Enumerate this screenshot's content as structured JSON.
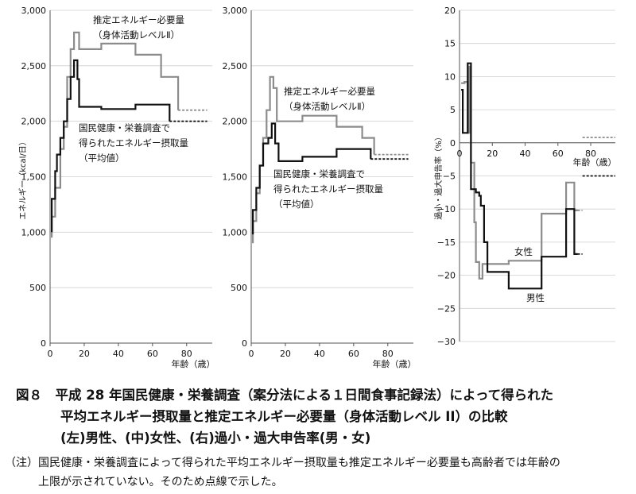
{
  "chart_data": [
    {
      "type": "line",
      "panel": "left",
      "ylim": [
        0,
        3000
      ],
      "yticks": [
        0,
        500,
        1000,
        1500,
        2000,
        2500,
        3000
      ],
      "ytick_labels": [
        "0",
        "500",
        "1,000",
        "1,500",
        "2,000",
        "2,500",
        "3,000"
      ],
      "xlim": [
        0,
        95
      ],
      "xticks": [
        0,
        20,
        40,
        60,
        80
      ],
      "xtick_labels": [
        "0",
        "20",
        "40",
        "60",
        "80"
      ],
      "ylabel": "エネルギー（kcal/日）",
      "xlabel": "年齢（歳）",
      "series": [
        {
          "name": "推定エネルギー必要量（身体活動レベルⅡ）",
          "color": "#8c8c8c",
          "points": [
            [
              1,
              950
            ],
            [
              1,
              1140
            ],
            [
              3,
              1140
            ],
            [
              3,
              1400
            ],
            [
              6,
              1400
            ],
            [
              6,
              1750
            ],
            [
              8,
              1750
            ],
            [
              8,
              1950
            ],
            [
              10,
              1950
            ],
            [
              10,
              2400
            ],
            [
              12,
              2400
            ],
            [
              12,
              2650
            ],
            [
              14,
              2650
            ],
            [
              14,
              2800
            ],
            [
              17,
              2800
            ],
            [
              17,
              2650
            ],
            [
              30,
              2650
            ],
            [
              30,
              2700
            ],
            [
              50,
              2700
            ],
            [
              50,
              2600
            ],
            [
              65,
              2600
            ],
            [
              65,
              2400
            ],
            [
              75,
              2400
            ],
            [
              75,
              2100
            ]
          ],
          "extension": [
            [
              75,
              2100
            ],
            [
              92,
              2100
            ]
          ]
        },
        {
          "name": "国民健康・栄養調査で得られたエネルギー摂取量（平均値）",
          "color": "#111111",
          "points": [
            [
              1,
              1000
            ],
            [
              1,
              1300
            ],
            [
              3,
              1300
            ],
            [
              3,
              1550
            ],
            [
              4,
              1550
            ],
            [
              4,
              1700
            ],
            [
              6,
              1700
            ],
            [
              6,
              1850
            ],
            [
              8,
              1850
            ],
            [
              8,
              2000
            ],
            [
              10,
              2000
            ],
            [
              10,
              2200
            ],
            [
              12,
              2200
            ],
            [
              12,
              2400
            ],
            [
              14,
              2400
            ],
            [
              14,
              2550
            ],
            [
              16,
              2550
            ],
            [
              16,
              2380
            ],
            [
              17,
              2380
            ],
            [
              17,
              2130
            ],
            [
              30,
              2130
            ],
            [
              30,
              2110
            ],
            [
              50,
              2110
            ],
            [
              50,
              2150
            ],
            [
              70,
              2150
            ],
            [
              70,
              2000
            ]
          ],
          "extension": [
            [
              70,
              2000
            ],
            [
              92,
              2000
            ]
          ]
        }
      ],
      "annotations": [
        {
          "text": "推定エネルギー必要量"
        },
        {
          "text": "（身体活動レベルⅡ）"
        },
        {
          "text": "国民健康・栄養調査で"
        },
        {
          "text": "得られたエネルギー摂取量"
        },
        {
          "text": "（平均値）"
        }
      ]
    },
    {
      "type": "line",
      "panel": "middle",
      "ylim": [
        0,
        3000
      ],
      "yticks": [
        0,
        500,
        1000,
        1500,
        2000,
        2500,
        3000
      ],
      "ytick_labels": [
        "0",
        "500",
        "1,000",
        "1,500",
        "2,000",
        "2,500",
        "3,000"
      ],
      "xlim": [
        0,
        95
      ],
      "xticks": [
        0,
        20,
        40,
        60,
        80
      ],
      "xtick_labels": [
        "0",
        "20",
        "40",
        "60",
        "80"
      ],
      "xlabel": "年齢（歳）",
      "series": [
        {
          "name": "推定エネルギー必要量（身体活動レベルⅡ）",
          "color": "#8c8c8c",
          "points": [
            [
              1,
              900
            ],
            [
              1,
              1100
            ],
            [
              3,
              1100
            ],
            [
              3,
              1350
            ],
            [
              5,
              1350
            ],
            [
              5,
              1600
            ],
            [
              7,
              1600
            ],
            [
              7,
              1850
            ],
            [
              9,
              1850
            ],
            [
              9,
              2100
            ],
            [
              11,
              2100
            ],
            [
              11,
              2400
            ],
            [
              13,
              2400
            ],
            [
              13,
              2300
            ],
            [
              15,
              2300
            ],
            [
              15,
              2000
            ],
            [
              30,
              2000
            ],
            [
              30,
              2050
            ],
            [
              50,
              2050
            ],
            [
              50,
              1950
            ],
            [
              65,
              1950
            ],
            [
              65,
              1850
            ],
            [
              72,
              1850
            ],
            [
              72,
              1700
            ]
          ],
          "extension": [
            [
              72,
              1700
            ],
            [
              92,
              1700
            ]
          ]
        },
        {
          "name": "国民健康・栄養調査で得られたエネルギー摂取量（平均値）",
          "color": "#111111",
          "points": [
            [
              1,
              980
            ],
            [
              1,
              1200
            ],
            [
              3,
              1200
            ],
            [
              3,
              1400
            ],
            [
              5,
              1400
            ],
            [
              5,
              1600
            ],
            [
              7,
              1600
            ],
            [
              7,
              1800
            ],
            [
              10,
              1800
            ],
            [
              10,
              1850
            ],
            [
              12,
              1850
            ],
            [
              12,
              1980
            ],
            [
              14,
              1980
            ],
            [
              14,
              1800
            ],
            [
              16,
              1800
            ],
            [
              16,
              1640
            ],
            [
              30,
              1640
            ],
            [
              30,
              1680
            ],
            [
              50,
              1680
            ],
            [
              50,
              1750
            ],
            [
              70,
              1750
            ],
            [
              70,
              1660
            ]
          ],
          "extension": [
            [
              70,
              1660
            ],
            [
              92,
              1660
            ]
          ]
        }
      ],
      "annotations": [
        {
          "text": "推定エネルギー必要量"
        },
        {
          "text": "（身体活動レベルⅡ）"
        },
        {
          "text": "国民健康・栄養調査で"
        },
        {
          "text": "得られたエネルギー摂取量"
        },
        {
          "text": "（平均値）"
        }
      ]
    },
    {
      "type": "line",
      "panel": "right",
      "ylim": [
        -30,
        20
      ],
      "yticks": [
        -30,
        -25,
        -20,
        -15,
        -10,
        -5,
        0,
        5,
        10,
        15,
        20
      ],
      "ytick_labels": [
        "−30",
        "−25",
        "−20",
        "−15",
        "−10",
        "−5",
        "0",
        "5",
        "10",
        "15",
        "20"
      ],
      "xlim": [
        0,
        95
      ],
      "xticks": [
        0,
        20,
        40,
        60,
        80
      ],
      "xtick_labels": [
        "0",
        "20",
        "40",
        "60",
        "80"
      ],
      "ylabel": "過小・過大申告率（%）",
      "xlabel": "年齢（歳）",
      "series": [
        {
          "name": "女性",
          "color": "#8c8c8c",
          "points": [
            [
              1,
              9
            ],
            [
              3,
              9
            ],
            [
              3,
              9.2
            ],
            [
              5,
              9.2
            ],
            [
              5,
              1.5
            ],
            [
              6,
              1.5
            ],
            [
              6,
              11.5
            ],
            [
              7,
              11.5
            ],
            [
              7,
              -3
            ],
            [
              9,
              -3
            ],
            [
              9,
              -12
            ],
            [
              10,
              -12
            ],
            [
              10,
              -18
            ],
            [
              12,
              -18
            ],
            [
              12,
              -20.5
            ],
            [
              14,
              -20.5
            ],
            [
              14,
              -18.3
            ],
            [
              30,
              -18.3
            ],
            [
              30,
              -17.8
            ],
            [
              50,
              -17.8
            ],
            [
              50,
              -10.7
            ],
            [
              65,
              -10.7
            ],
            [
              65,
              -6
            ],
            [
              70,
              -6
            ],
            [
              70,
              -10.2
            ],
            [
              72,
              -10.2
            ]
          ],
          "extension": [
            [
              72,
              -10.2
            ],
            [
              75,
              -10.2
            ]
          ]
        },
        {
          "name": "男性",
          "color": "#111111",
          "points": [
            [
              1,
              8
            ],
            [
              2,
              8
            ],
            [
              2,
              1.5
            ],
            [
              5,
              1.5
            ],
            [
              5,
              12
            ],
            [
              7,
              12
            ],
            [
              7,
              -7
            ],
            [
              10,
              -7
            ],
            [
              10,
              -7.5
            ],
            [
              12,
              -7.5
            ],
            [
              12,
              -8
            ],
            [
              13,
              -8
            ],
            [
              13,
              -9.5
            ],
            [
              15,
              -9.5
            ],
            [
              15,
              -15
            ],
            [
              17,
              -15
            ],
            [
              17,
              -19.5
            ],
            [
              30,
              -19.5
            ],
            [
              30,
              -22
            ],
            [
              50,
              -22
            ],
            [
              50,
              -17.2
            ],
            [
              65,
              -17.2
            ],
            [
              65,
              -10
            ],
            [
              70,
              -10
            ],
            [
              70,
              -16.8
            ],
            [
              72,
              -16.8
            ]
          ],
          "extension": [
            [
              72,
              -16.8
            ],
            [
              75,
              -16.8
            ]
          ]
        },
        {
          "name": "",
          "color": "#8c8c8c",
          "extension": [
            [
              75,
              0.8
            ],
            [
              95,
              0.8
            ]
          ]
        },
        {
          "name": "",
          "color": "#111111",
          "extension": [
            [
              75,
              -5
            ],
            [
              95,
              -5
            ]
          ]
        }
      ],
      "annotations": [
        {
          "text": "女性"
        },
        {
          "text": "男性"
        }
      ]
    }
  ],
  "caption": {
    "line1": "図８　平成 28 年国民健康・栄養調査（案分法による１日間食事記録法）によって得られた",
    "line2": "平均エネルギー摂取量と推定エネルギー必要量（身体活動レベル II）の比較",
    "line3": "(左)男性、(中)女性、(右)過小・過大申告率(男・女)",
    "note1": "（注）国民健康・栄養調査によって得られた平均エネルギー摂取量も推定エネルギー必要量も高齢者では年齢の",
    "note2": "上限が示されていない。そのため点線で示した。"
  }
}
